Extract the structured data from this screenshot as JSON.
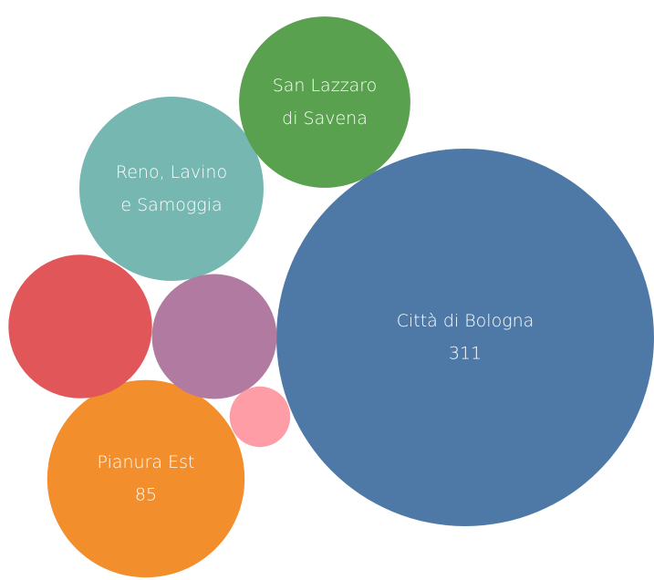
{
  "chart_data": {
    "type": "bubble",
    "categories": [
      "Città di Bologna",
      "Pianura Est",
      "Reno, Lavino e Samoggia",
      "San Lazzaro di Savena",
      null,
      null,
      null
    ],
    "values": [
      311,
      85,
      74,
      64,
      45,
      34,
      8
    ],
    "value_labels": [
      "311",
      "85",
      null,
      null,
      null,
      null,
      null
    ],
    "colors": [
      "#4e79a7",
      "#f28e2b",
      "#76b7b2",
      "#59a14f",
      "#e15759",
      "#b07aa1",
      "#ff9da7"
    ]
  }
}
